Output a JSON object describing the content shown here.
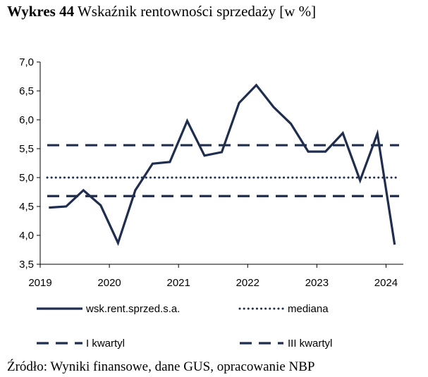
{
  "header": {
    "title_bold": "Wykres 44",
    "title_rest": "Wskaźnik rentowności sprzedaży [w %]"
  },
  "footer": {
    "source": "Źródło: Wyniki finansowe, dane GUS, opracowanie NBP"
  },
  "colors": {
    "series": "#1f2d4e"
  },
  "chart_data": {
    "type": "line",
    "title": "Wskaźnik rentowności sprzedaży [w %]",
    "xlabel": "",
    "ylabel": "",
    "ylim": [
      3.5,
      7.0
    ],
    "y_ticks": [
      "3,5",
      "4,0",
      "4,5",
      "5,0",
      "5,5",
      "6,0",
      "6,5",
      "7,0"
    ],
    "y_tick_values": [
      3.5,
      4.0,
      4.5,
      5.0,
      5.5,
      6.0,
      6.5,
      7.0
    ],
    "x_ticks": [
      "2019",
      "2020",
      "2021",
      "2022",
      "2023",
      "2024"
    ],
    "x_tick_values": [
      2019,
      2020,
      2021,
      2022,
      2023,
      2024
    ],
    "xlim": [
      2019,
      2024.25
    ],
    "grid": false,
    "legend_position": "bottom",
    "series": [
      {
        "name": "wsk.rent.sprzed.s.a.",
        "style": "solid",
        "x": [
          2019.125,
          2019.375,
          2019.625,
          2019.875,
          2020.125,
          2020.375,
          2020.625,
          2020.875,
          2021.125,
          2021.375,
          2021.625,
          2021.875,
          2022.125,
          2022.375,
          2022.625,
          2022.875,
          2023.125,
          2023.375,
          2023.625,
          2023.875,
          2024.125
        ],
        "values": [
          4.48,
          4.5,
          4.78,
          4.52,
          3.87,
          4.78,
          5.24,
          5.27,
          5.98,
          5.38,
          5.44,
          6.29,
          6.6,
          6.22,
          5.93,
          5.45,
          5.45,
          5.77,
          4.95,
          5.76,
          3.84
        ]
      },
      {
        "name": "mediana",
        "style": "dotted",
        "values": [
          5.0
        ]
      },
      {
        "name": "I kwartyl",
        "style": "dashed",
        "values": [
          4.68
        ]
      },
      {
        "name": "III kwartyl",
        "style": "dashed",
        "values": [
          5.56
        ]
      }
    ]
  }
}
